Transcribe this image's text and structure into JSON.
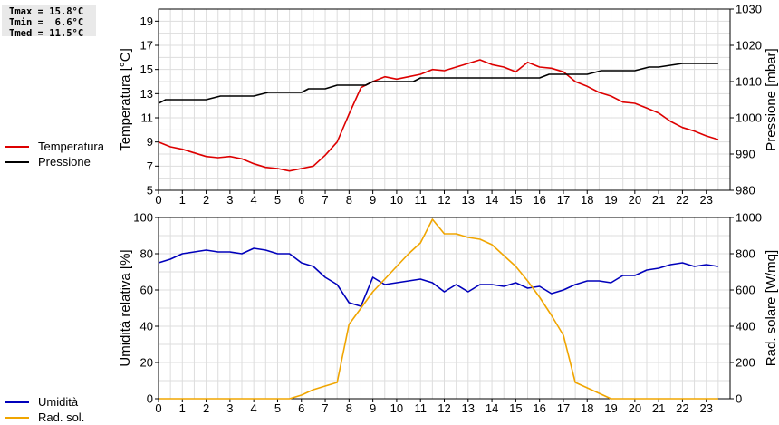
{
  "stats": {
    "tmax": "Tmax = 15.8°C",
    "tmin": "Tmin =  6.6°C",
    "tmed": "Tmed = 11.5°C"
  },
  "legend_top": [
    {
      "label": "Temperatura",
      "color": "#dd0000"
    },
    {
      "label": "Pressione",
      "color": "#000000"
    }
  ],
  "legend_bottom": [
    {
      "label": "Umidità",
      "color": "#0000bb"
    },
    {
      "label": "Rad. sol.",
      "color": "#f0a500"
    }
  ],
  "chart_data": [
    {
      "type": "line",
      "x_ticks": [
        "0",
        "1",
        "2",
        "3",
        "4",
        "5",
        "6",
        "7",
        "8",
        "9",
        "10",
        "11",
        "12",
        "13",
        "14",
        "15",
        "16",
        "17",
        "18",
        "19",
        "20",
        "21",
        "22",
        "23"
      ],
      "xlim": [
        0,
        24
      ],
      "ylabel": "Temperatura [°C]",
      "ylim": [
        5,
        20
      ],
      "y_ticks": [
        "5",
        "7",
        "9",
        "11",
        "13",
        "15",
        "17",
        "19"
      ],
      "y2label": "Pressione [mbar]",
      "y2lim": [
        980,
        1030
      ],
      "y2_ticks": [
        "980",
        "990",
        "1000",
        "1010",
        "1020",
        "1030"
      ],
      "grid": true,
      "series": [
        {
          "name": "Temperatura",
          "axis": "left",
          "color": "#dd0000",
          "x": [
            0,
            0.5,
            1,
            1.5,
            2,
            2.5,
            3,
            3.5,
            4,
            4.5,
            5,
            5.5,
            6,
            6.5,
            7,
            7.5,
            8,
            8.5,
            9,
            9.5,
            10,
            10.5,
            11,
            11.5,
            12,
            12.5,
            13,
            13.5,
            14,
            14.5,
            15,
            15.5,
            16,
            16.5,
            17,
            17.5,
            18,
            18.5,
            19,
            19.5,
            20,
            20.5,
            21,
            21.5,
            22,
            22.5,
            23,
            23.5
          ],
          "y": [
            9.0,
            8.6,
            8.4,
            8.1,
            7.8,
            7.7,
            7.8,
            7.6,
            7.2,
            6.9,
            6.8,
            6.6,
            6.8,
            7.0,
            7.9,
            9.0,
            11.3,
            13.5,
            14.0,
            14.4,
            14.2,
            14.4,
            14.6,
            15.0,
            14.9,
            15.2,
            15.5,
            15.8,
            15.4,
            15.2,
            14.8,
            15.6,
            15.2,
            15.1,
            14.8,
            14.0,
            13.6,
            13.1,
            12.8,
            12.3,
            12.2,
            11.8,
            11.4,
            10.7,
            10.2,
            9.9,
            9.5,
            9.2
          ]
        },
        {
          "name": "Pressione",
          "axis": "right",
          "color": "#000000",
          "x": [
            0,
            0.3,
            1,
            2,
            2.6,
            4,
            4.6,
            6,
            6.3,
            7,
            7.5,
            8,
            8.7,
            9,
            10,
            10.7,
            11,
            12,
            13,
            14,
            15,
            16,
            16.4,
            17,
            18,
            18.6,
            19,
            20,
            20.6,
            21,
            22,
            23,
            23.5
          ],
          "y": [
            1004,
            1005,
            1005,
            1005,
            1006,
            1006,
            1007,
            1007,
            1008,
            1008,
            1009,
            1009,
            1009,
            1010,
            1010,
            1010,
            1011,
            1011,
            1011,
            1011,
            1011,
            1011,
            1012,
            1012,
            1012,
            1013,
            1013,
            1013,
            1014,
            1014,
            1015,
            1015,
            1015
          ]
        }
      ]
    },
    {
      "type": "line",
      "x_ticks": [
        "0",
        "1",
        "2",
        "3",
        "4",
        "5",
        "6",
        "7",
        "8",
        "9",
        "10",
        "11",
        "12",
        "13",
        "14",
        "15",
        "16",
        "17",
        "18",
        "19",
        "20",
        "21",
        "22",
        "23"
      ],
      "xlim": [
        0,
        24
      ],
      "ylabel": "Umidità relativa [%]",
      "ylim": [
        0,
        100
      ],
      "y_ticks": [
        "0",
        "20",
        "40",
        "60",
        "80",
        "100"
      ],
      "y2label": "Rad. solare [W/mq]",
      "y2lim": [
        0,
        1000
      ],
      "y2_ticks": [
        "0",
        "200",
        "400",
        "600",
        "800",
        "1000"
      ],
      "grid": true,
      "series": [
        {
          "name": "Umidità",
          "axis": "left",
          "color": "#0000bb",
          "x": [
            0,
            0.5,
            1,
            1.5,
            2,
            2.5,
            3,
            3.5,
            4,
            4.5,
            5,
            5.5,
            6,
            6.5,
            7,
            7.5,
            8,
            8.5,
            9,
            9.5,
            10,
            10.5,
            11,
            11.5,
            12,
            12.5,
            13,
            13.5,
            14,
            14.5,
            15,
            15.5,
            16,
            16.5,
            17,
            17.5,
            18,
            18.5,
            19,
            19.5,
            20,
            20.5,
            21,
            21.5,
            22,
            22.5,
            23,
            23.5
          ],
          "y": [
            75,
            77,
            80,
            81,
            82,
            81,
            81,
            80,
            83,
            82,
            80,
            80,
            75,
            73,
            67,
            63,
            53,
            51,
            67,
            63,
            64,
            65,
            66,
            64,
            59,
            63,
            59,
            63,
            63,
            62,
            64,
            61,
            62,
            58,
            60,
            63,
            65,
            65,
            64,
            68,
            68,
            71,
            72,
            74,
            75,
            73,
            74,
            73
          ]
        },
        {
          "name": "Rad. sol.",
          "axis": "right",
          "color": "#f0a500",
          "x": [
            0,
            1,
            2,
            3,
            4,
            5,
            5.5,
            6,
            6.5,
            7,
            7.5,
            8,
            8.5,
            9,
            9.5,
            10,
            10.5,
            11,
            11.5,
            12,
            12.5,
            13,
            13.5,
            14,
            14.5,
            15,
            15.5,
            16,
            16.5,
            17,
            17.5,
            18,
            18.5,
            19,
            20,
            21,
            22,
            23,
            23.5
          ],
          "y": [
            0,
            0,
            0,
            0,
            0,
            0,
            0,
            20,
            50,
            70,
            90,
            410,
            500,
            590,
            660,
            730,
            800,
            860,
            990,
            910,
            910,
            890,
            880,
            850,
            790,
            730,
            650,
            560,
            460,
            350,
            90,
            60,
            30,
            0,
            0,
            0,
            0,
            0,
            0
          ]
        }
      ]
    }
  ]
}
